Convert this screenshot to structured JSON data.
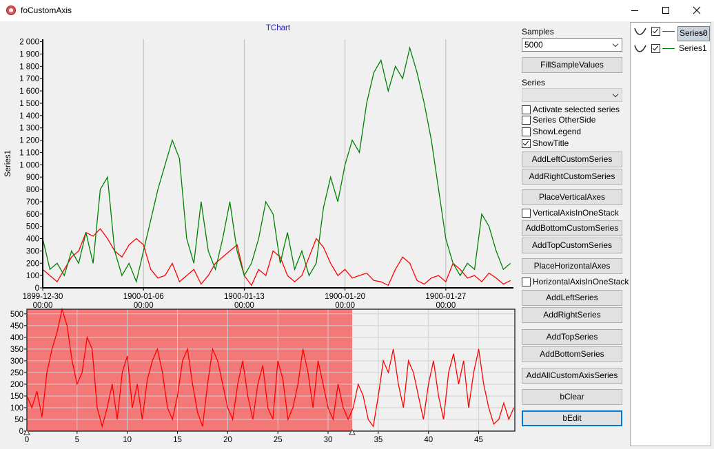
{
  "window": {
    "title": "foCustomAxis"
  },
  "chart_data": [
    {
      "type": "line",
      "title": "TChart",
      "ylabel": "Series1",
      "x": [
        0,
        0.5,
        1,
        1.5,
        2,
        2.5,
        3,
        3.5,
        4,
        4.5,
        5,
        5.5,
        6,
        6.5,
        7,
        7.5,
        8,
        8.5,
        9,
        9.5,
        10,
        10.5,
        11,
        11.5,
        12,
        12.5,
        13,
        13.5,
        14,
        14.5,
        15,
        15.5,
        16,
        16.5,
        17,
        17.5,
        18,
        18.5,
        19,
        19.5,
        20,
        20.5,
        21,
        21.5,
        22,
        22.5,
        23,
        23.5,
        24,
        24.5,
        25,
        25.5,
        26,
        26.5,
        27,
        27.5,
        28,
        28.5,
        29,
        29.5,
        30,
        30.5,
        31,
        31.5,
        32,
        32.5
      ],
      "series": [
        {
          "name": "Series0",
          "color": "#ff0000",
          "values": [
            150,
            100,
            50,
            150,
            250,
            300,
            450,
            420,
            480,
            400,
            300,
            250,
            350,
            400,
            350,
            150,
            80,
            100,
            200,
            50,
            100,
            150,
            30,
            100,
            200,
            250,
            300,
            350,
            100,
            20,
            150,
            100,
            300,
            250,
            100,
            50,
            100,
            250,
            400,
            330,
            200,
            100,
            150,
            80,
            100,
            120,
            60,
            50,
            20,
            150,
            250,
            200,
            60,
            30,
            80,
            100,
            50,
            200,
            150,
            80,
            100,
            50,
            120,
            80,
            30,
            60
          ]
        },
        {
          "name": "Series1",
          "color": "#008000",
          "values": [
            400,
            150,
            200,
            100,
            300,
            200,
            450,
            200,
            800,
            900,
            300,
            100,
            200,
            50,
            300,
            550,
            800,
            1000,
            1200,
            1050,
            400,
            200,
            700,
            300,
            150,
            400,
            700,
            300,
            100,
            200,
            400,
            700,
            600,
            200,
            450,
            150,
            300,
            100,
            200,
            650,
            900,
            700,
            1000,
            1200,
            1100,
            1500,
            1750,
            1850,
            1600,
            1800,
            1700,
            1950,
            1750,
            1500,
            1200,
            800,
            400,
            200,
            100,
            200,
            150,
            600,
            500,
            300,
            150,
            200
          ]
        }
      ],
      "xlim": [
        0,
        32.7
      ],
      "xticks": [
        {
          "value": 0,
          "label": "1899-12-30 00:00"
        },
        {
          "value": 7,
          "label": "1900-01-06 00:00"
        },
        {
          "value": 14,
          "label": "1900-01-13 00:00"
        },
        {
          "value": 21,
          "label": "1900-01-20 00:00"
        },
        {
          "value": 28,
          "label": "1900-01-27 00:00"
        }
      ],
      "ylim": [
        0,
        2020
      ],
      "yticks": [
        0,
        100,
        200,
        300,
        400,
        500,
        600,
        700,
        800,
        900,
        {
          "value": 1000,
          "label": "1 000"
        },
        {
          "value": 1100,
          "label": "1 100"
        },
        {
          "value": 1200,
          "label": "1 200"
        },
        {
          "value": 1300,
          "label": "1 300"
        },
        {
          "value": 1400,
          "label": "1 400"
        },
        {
          "value": 1500,
          "label": "1 500"
        },
        {
          "value": 1600,
          "label": "1 600"
        },
        {
          "value": 1700,
          "label": "1 700"
        },
        {
          "value": 1800,
          "label": "1 800"
        },
        {
          "value": 1900,
          "label": "1 900"
        },
        {
          "value": 2000,
          "label": "2 000"
        }
      ],
      "xgrid": true,
      "ygrid": false
    },
    {
      "type": "line",
      "x": [
        0,
        0.5,
        1,
        1.5,
        2,
        2.5,
        3,
        3.5,
        4,
        4.5,
        5,
        5.5,
        6,
        6.5,
        7,
        7.5,
        8,
        8.5,
        9,
        9.5,
        10,
        10.5,
        11,
        11.5,
        12,
        12.5,
        13,
        13.5,
        14,
        14.5,
        15,
        15.5,
        16,
        16.5,
        17,
        17.5,
        18,
        18.5,
        19,
        19.5,
        20,
        20.5,
        21,
        21.5,
        22,
        22.5,
        23,
        23.5,
        24,
        24.5,
        25,
        25.5,
        26,
        26.5,
        27,
        27.5,
        28,
        28.5,
        29,
        29.5,
        30,
        30.5,
        31,
        31.5,
        32,
        32.5,
        33,
        33.5,
        34,
        34.5,
        35,
        35.5,
        36,
        36.5,
        37,
        37.5,
        38,
        38.5,
        39,
        39.5,
        40,
        40.5,
        41,
        41.5,
        42,
        42.5,
        43,
        43.5,
        44,
        44.5,
        45,
        45.5,
        46,
        46.5,
        47,
        47.5,
        48,
        48.5
      ],
      "series": [
        {
          "color": "#ff0000",
          "values": [
            150,
            100,
            170,
            60,
            250,
            350,
            420,
            520,
            450,
            300,
            200,
            250,
            400,
            350,
            100,
            20,
            100,
            200,
            50,
            250,
            320,
            100,
            200,
            50,
            220,
            300,
            350,
            250,
            100,
            50,
            150,
            300,
            350,
            200,
            80,
            20,
            200,
            350,
            300,
            200,
            100,
            50,
            200,
            300,
            150,
            50,
            200,
            280,
            100,
            50,
            300,
            220,
            50,
            100,
            200,
            350,
            250,
            100,
            300,
            200,
            100,
            50,
            200,
            100,
            50,
            100,
            200,
            150,
            50,
            20,
            150,
            300,
            250,
            350,
            200,
            100,
            300,
            250,
            150,
            50,
            200,
            300,
            150,
            50,
            250,
            330,
            200,
            300,
            100,
            250,
            350,
            200,
            100,
            30,
            50,
            120,
            50,
            100
          ]
        }
      ],
      "xlim": [
        0,
        48.6
      ],
      "xticks": [
        0,
        5,
        10,
        15,
        20,
        25,
        30,
        35,
        40,
        45
      ],
      "ylim": [
        0,
        520
      ],
      "yticks": [
        0,
        50,
        100,
        150,
        200,
        250,
        300,
        350,
        400,
        450,
        500
      ],
      "xgrid": true,
      "ygrid": true,
      "selection": [
        0,
        32.4
      ],
      "selection_color": "rgba(245,40,40,0.6)"
    }
  ],
  "controls": [
    {
      "label": "Samples"
    },
    {
      "select": "5000"
    },
    {
      "button": "FillSampleValues"
    },
    {
      "label": "Series"
    },
    {
      "select": null
    },
    {
      "checkbox": "Activate selected series",
      "checked": false
    },
    {
      "checkbox": "Series OtherSide",
      "checked": false
    },
    {
      "checkbox": "ShowLegend",
      "checked": false
    },
    {
      "checkbox": "ShowTitle",
      "checked": true
    },
    {
      "button": "AddLeftCustomSeries"
    },
    {
      "button": "AddRightCustomSeries"
    },
    {
      "button": "PlaceVerticalAxes"
    },
    {
      "checkbox": "VerticalAxisInOneStack",
      "checked": false
    },
    {
      "button": "AddBottomCustomSeries"
    },
    {
      "button": "AddTopCustomSeries"
    },
    {
      "button": "PlaceHorizontalAxes"
    },
    {
      "checkbox": "HorizontalAxisInOneStack",
      "checked": false
    },
    {
      "button": "AddLeftSeries"
    },
    {
      "button": "AddRightSeries"
    },
    {
      "button": "AddTopSeries"
    },
    {
      "button": "AddBottomSeries"
    },
    {
      "button": "AddAllCustomAxisSeries"
    },
    {
      "button": "bClear"
    },
    {
      "button": "bEdit",
      "focused": true
    }
  ],
  "legend": {
    "checked": [
      true,
      true
    ],
    "selected": 0
  }
}
